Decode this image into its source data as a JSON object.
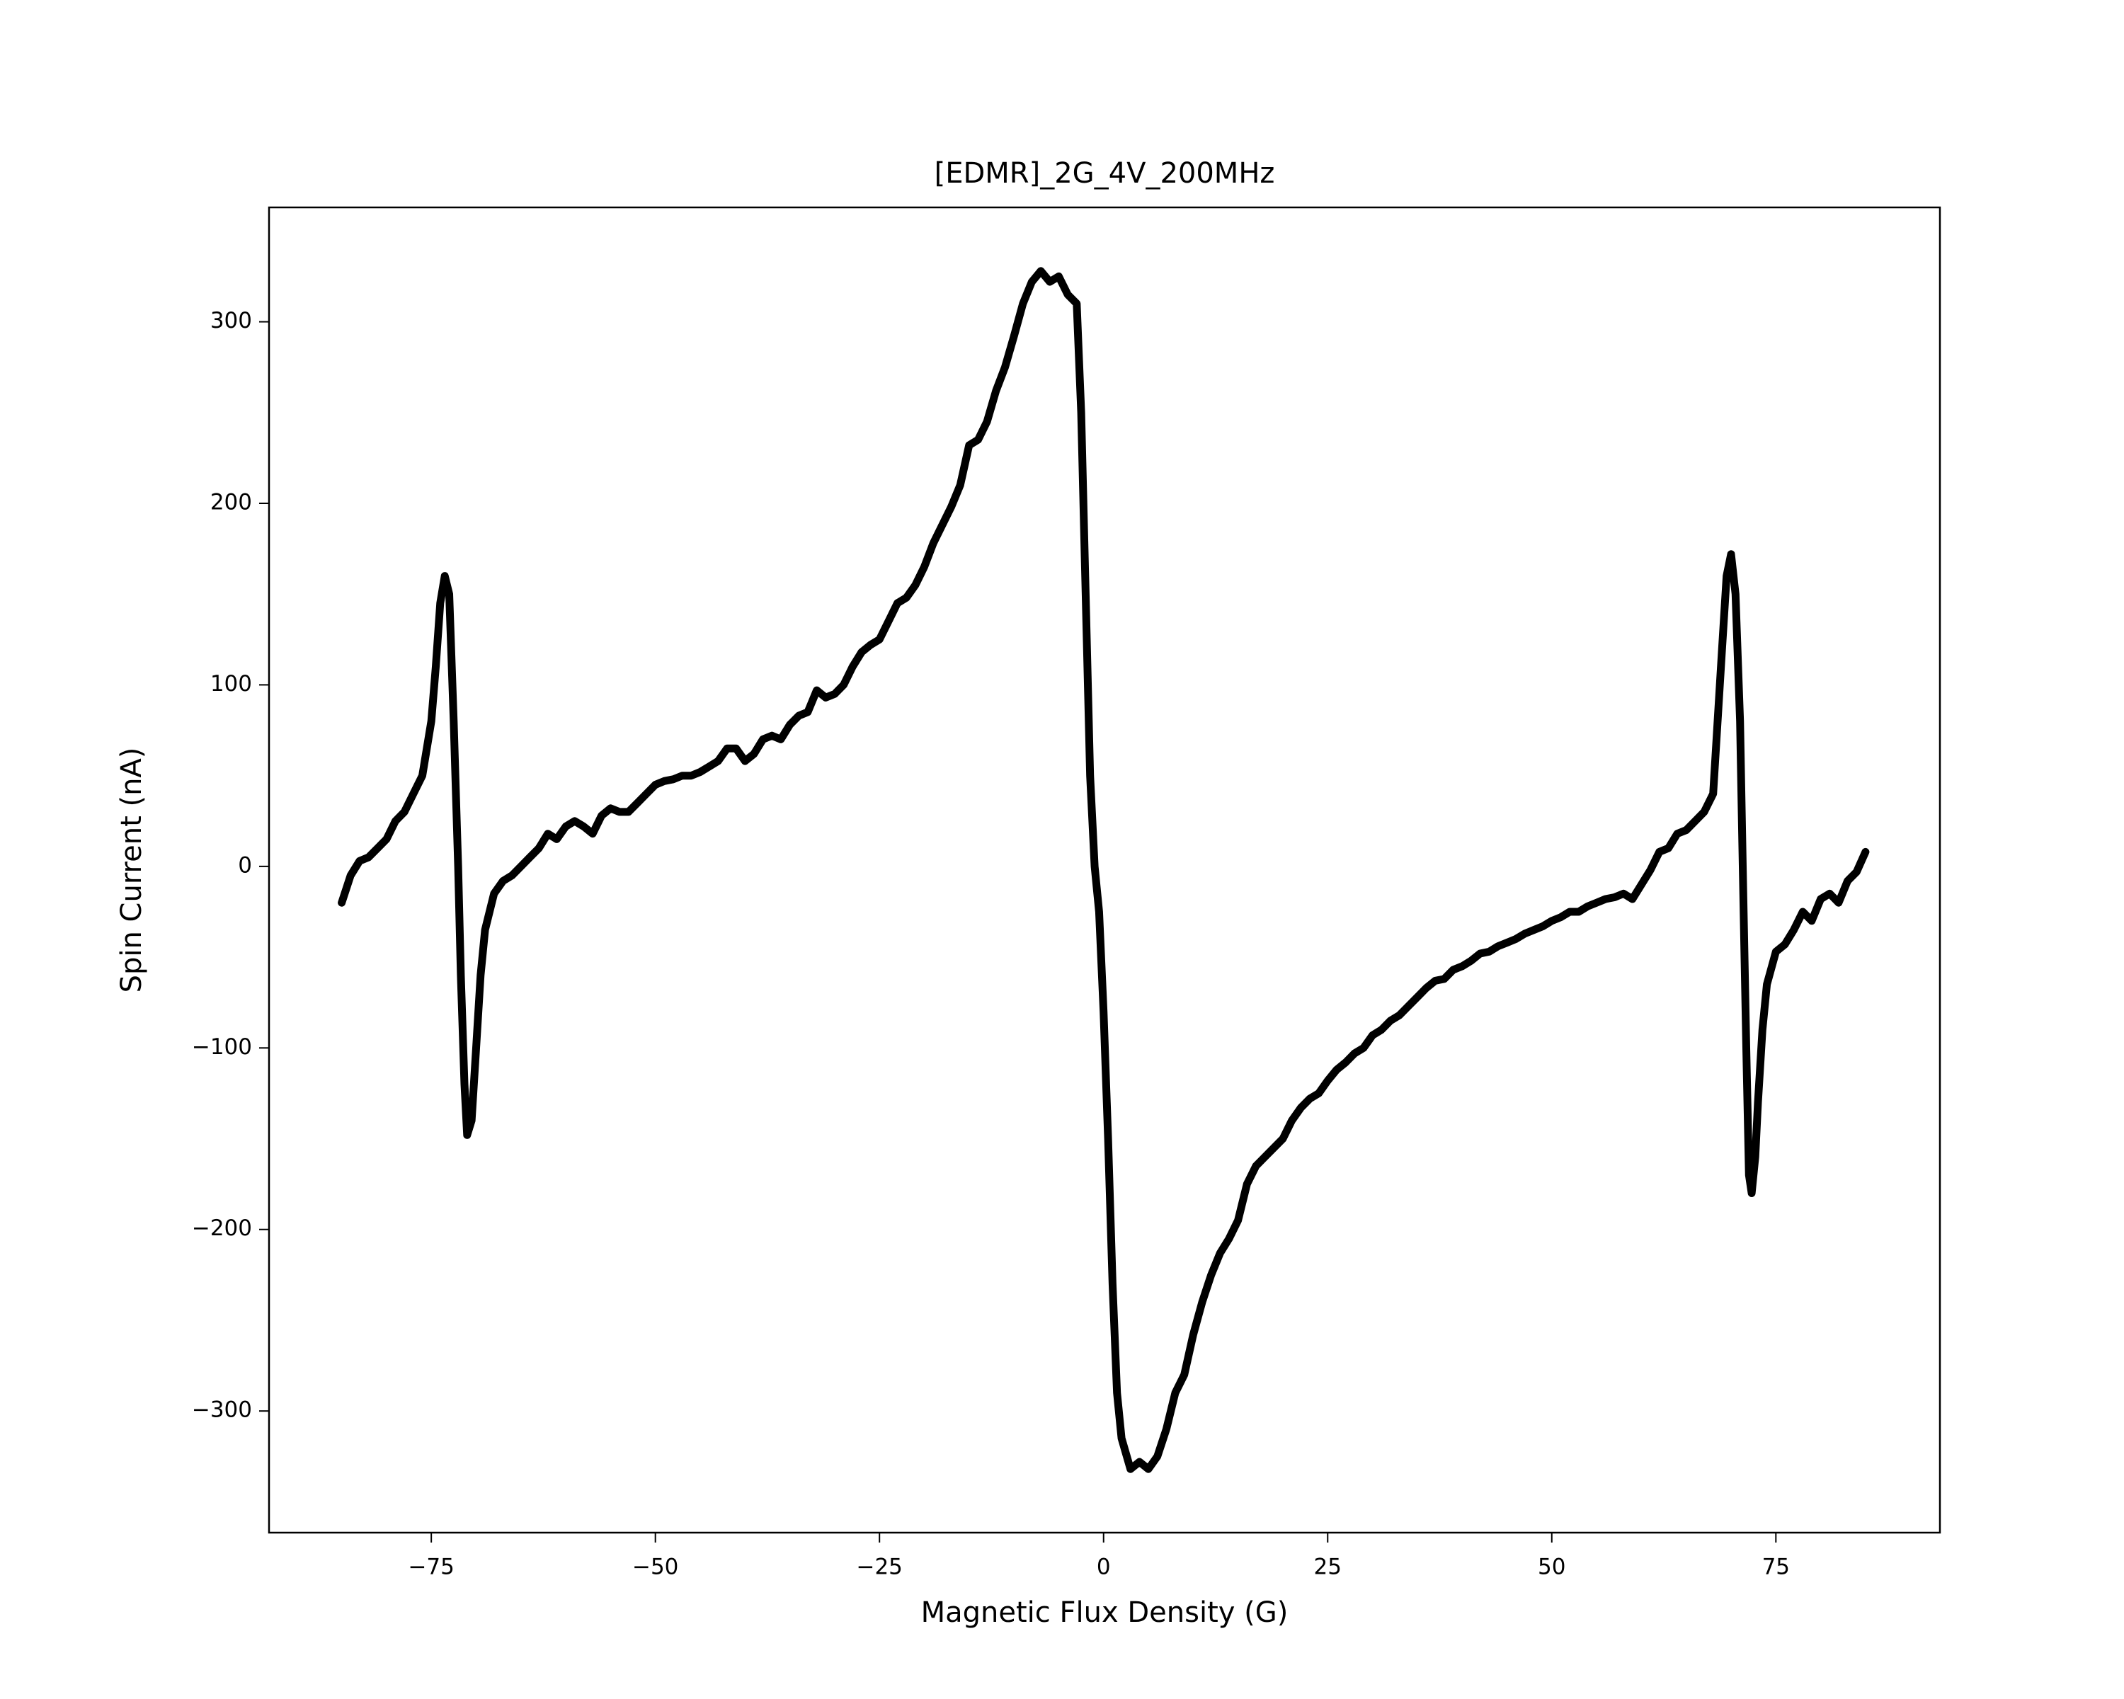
{
  "chart_data": {
    "type": "line",
    "title": "[EDMR]_2G_4V_200MHz",
    "x_label": "Magnetic Flux Density (G)",
    "y_label": "Spin Current (nA)",
    "color": "#000000",
    "xlim": [
      -93.1,
      93.3
    ],
    "ylim": [
      -367,
      363
    ],
    "xticks": [
      {
        "value": -75,
        "label": "−75"
      },
      {
        "value": -50,
        "label": "−50"
      },
      {
        "value": -25,
        "label": "−25"
      },
      0,
      25,
      50,
      75
    ],
    "yticks": [
      {
        "value": -300,
        "label": "−300"
      },
      {
        "value": -200,
        "label": "−200"
      },
      {
        "value": -100,
        "label": "−100"
      },
      0,
      100,
      200,
      300
    ],
    "x": [
      -85,
      -84,
      -83,
      -82,
      -81,
      -80,
      -79,
      -78,
      -77,
      -76,
      -75,
      -74.5,
      -74,
      -73.5,
      -73,
      -72.5,
      -72,
      -71.7,
      -71.3,
      -71,
      -70.5,
      -70,
      -69.5,
      -69,
      -68,
      -67,
      -66,
      -65,
      -64,
      -63,
      -62,
      -61,
      -60,
      -59,
      -58,
      -57,
      -56,
      -55,
      -54,
      -53,
      -52,
      -51,
      -50,
      -49,
      -48,
      -47,
      -46,
      -45,
      -44,
      -43,
      -42,
      -41,
      -40,
      -39,
      -38,
      -37,
      -36,
      -35,
      -34,
      -33,
      -32,
      -31,
      -30,
      -29,
      -28,
      -27,
      -26,
      -25,
      -24,
      -23,
      -22,
      -21,
      -20,
      -19,
      -18,
      -17,
      -16,
      -15,
      -14,
      -13,
      -12,
      -11,
      -10,
      -9,
      -8,
      -7,
      -6,
      -5,
      -4,
      -3,
      -2.5,
      -2,
      -1.5,
      -1,
      -0.5,
      0,
      0.5,
      1,
      1.5,
      2,
      3,
      4,
      5,
      6,
      7,
      8,
      9,
      10,
      11,
      12,
      13,
      14,
      15,
      16,
      17,
      18,
      19,
      20,
      21,
      22,
      23,
      24,
      25,
      26,
      27,
      28,
      29,
      30,
      31,
      32,
      33,
      34,
      35,
      36,
      37,
      38,
      39,
      40,
      41,
      42,
      43,
      44,
      45,
      46,
      47,
      48,
      49,
      50,
      51,
      52,
      53,
      54,
      55,
      56,
      57,
      58,
      59,
      60,
      61,
      62,
      63,
      64,
      65,
      66,
      67,
      68,
      68.5,
      69,
      69.5,
      70,
      70.5,
      71,
      71.3,
      71.7,
      72,
      72.3,
      72.7,
      73,
      73.5,
      74,
      75,
      76,
      77,
      78,
      79,
      80,
      81,
      82,
      83,
      84,
      85
    ],
    "values": [
      -20,
      -5,
      3,
      5,
      10,
      15,
      25,
      30,
      40,
      50,
      80,
      110,
      145,
      160,
      150,
      80,
      0,
      -60,
      -120,
      -148,
      -140,
      -100,
      -60,
      -35,
      -15,
      -8,
      -5,
      0,
      5,
      10,
      18,
      15,
      22,
      25,
      22,
      18,
      28,
      32,
      30,
      30,
      35,
      40,
      45,
      47,
      48,
      50,
      50,
      52,
      55,
      58,
      65,
      65,
      58,
      62,
      70,
      72,
      70,
      78,
      83,
      85,
      97,
      93,
      95,
      100,
      110,
      118,
      122,
      125,
      135,
      145,
      148,
      155,
      165,
      178,
      188,
      198,
      210,
      232,
      235,
      245,
      262,
      275,
      292,
      310,
      322,
      328,
      322,
      325,
      315,
      310,
      250,
      150,
      50,
      0,
      -25,
      -80,
      -150,
      -230,
      -290,
      -315,
      -332,
      -328,
      -332,
      -325,
      -310,
      -290,
      -280,
      -258,
      -240,
      -225,
      -213,
      -205,
      -195,
      -175,
      -165,
      -160,
      -155,
      -150,
      -140,
      -133,
      -128,
      -125,
      -118,
      -112,
      -108,
      -103,
      -100,
      -93,
      -90,
      -85,
      -82,
      -77,
      -72,
      -67,
      -63,
      -62,
      -57,
      -55,
      -52,
      -48,
      -47,
      -44,
      -42,
      -40,
      -37,
      -35,
      -33,
      -30,
      -28,
      -25,
      -25,
      -22,
      -20,
      -18,
      -17,
      -15,
      -18,
      -10,
      -2,
      8,
      10,
      18,
      20,
      25,
      30,
      40,
      80,
      120,
      160,
      172,
      150,
      80,
      0,
      -100,
      -170,
      -180,
      -160,
      -130,
      -90,
      -65,
      -47,
      -43,
      -35,
      -25,
      -30,
      -18,
      -15,
      -20,
      -8,
      -3,
      8
    ]
  }
}
